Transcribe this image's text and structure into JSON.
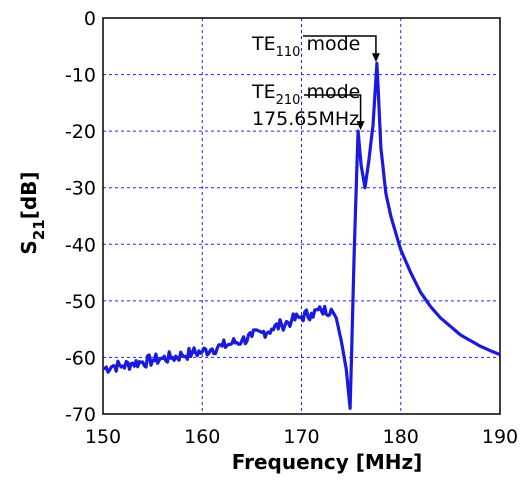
{
  "chart_data": {
    "type": "line",
    "title": "",
    "xlabel": "Frequency [MHz]",
    "ylabel": "S21[dB]",
    "ylabel_main": "S",
    "ylabel_sub": "21",
    "ylabel_unit": "[dB]",
    "xlim": [
      150,
      190
    ],
    "ylim": [
      -70,
      0
    ],
    "xticks": [
      "150",
      "160",
      "170",
      "180",
      "190"
    ],
    "yticks": [
      "0",
      "-10",
      "-20",
      "-30",
      "-40",
      "-50",
      "-60",
      "-70"
    ],
    "grid": true,
    "legend": "none",
    "line_color": "#1a1adf",
    "series": [
      {
        "x": [
          150,
          151,
          152,
          153,
          154,
          155,
          156,
          157,
          158,
          159,
          160,
          161,
          162,
          163,
          164,
          165,
          166,
          167,
          168,
          169,
          170,
          171,
          172,
          173,
          173.5,
          174,
          174.5,
          174.9,
          175.3,
          175.7,
          176.0,
          176.4,
          176.8,
          177.2,
          177.6,
          178.0,
          178.5,
          179,
          180,
          181,
          182,
          183,
          184,
          185,
          186,
          187,
          188,
          189,
          190
        ],
        "y": [
          -62,
          -61.5,
          -61.5,
          -61,
          -60.8,
          -60.5,
          -60.2,
          -60,
          -59.6,
          -59.2,
          -59,
          -58.5,
          -58,
          -57.5,
          -57,
          -56.3,
          -55.6,
          -55,
          -54.2,
          -53.5,
          -52.8,
          -52.2,
          -51.8,
          -51.5,
          -53,
          -57,
          -62,
          -69,
          -42,
          -20,
          -26,
          -30,
          -25,
          -19,
          -8,
          -23,
          -31,
          -35,
          -41,
          -45,
          -48.5,
          -51,
          -53,
          -54.5,
          -56,
          -57,
          -58,
          -58.8,
          -59.5
        ]
      }
    ],
    "annotations": [
      {
        "base": "TE",
        "sub": "110",
        "text": " mode",
        "x": 177.5,
        "y": -8
      },
      {
        "base": "TE",
        "sub": "210",
        "text": " mode",
        "line2": "175.65MHz",
        "x": 175.65,
        "y": -20
      }
    ]
  }
}
